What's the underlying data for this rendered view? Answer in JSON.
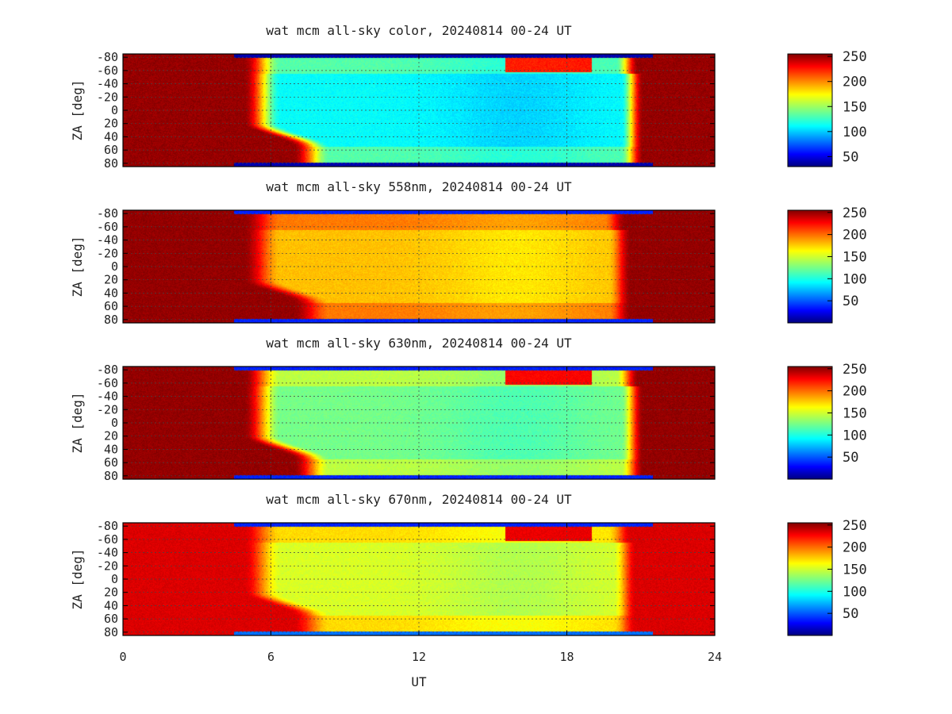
{
  "chart_data": [
    {
      "type": "heatmap",
      "title": "wat mcm all-sky color, 20240814 00-24 UT",
      "xlabel": "",
      "ylabel": "ZA [deg]",
      "xlim": [
        0,
        24
      ],
      "ylim": [
        -85,
        85
      ],
      "x_ticks": [
        0,
        6,
        12,
        18,
        24
      ],
      "y_ticks": [
        -80,
        -60,
        -40,
        -20,
        0,
        20,
        40,
        60,
        80
      ],
      "y_tick_labels": [
        "-80",
        "-60",
        "-40",
        "-20",
        "0",
        "20",
        "40",
        "60",
        "80"
      ],
      "grid": true,
      "colorbar": {
        "ticks": [
          50,
          100,
          150,
          200,
          250
        ],
        "range": [
          30,
          255
        ],
        "colormap": "jet"
      },
      "day_value": 250,
      "night_base": 115,
      "dusk_ut": 5.8,
      "dawn_ut": 20.8
    },
    {
      "type": "heatmap",
      "title": "wat mcm all-sky 558nm, 20240814 00-24 UT",
      "xlabel": "",
      "ylabel": "ZA [deg]",
      "xlim": [
        0,
        24
      ],
      "ylim": [
        -85,
        85
      ],
      "x_ticks": [
        0,
        6,
        12,
        18,
        24
      ],
      "y_ticks": [
        -80,
        -60,
        -40,
        -20,
        0,
        20,
        40,
        60,
        80
      ],
      "y_tick_labels": [
        "-80",
        "-60",
        "-40",
        "-20",
        "0",
        "20",
        "40",
        "60",
        "80"
      ],
      "grid": true,
      "colorbar": {
        "ticks": [
          50,
          100,
          150,
          200,
          250
        ],
        "range": [
          0,
          255
        ],
        "colormap": "jet"
      },
      "day_value": 250,
      "night_base": 175,
      "dusk_ut": 5.8,
      "dawn_ut": 20.3
    },
    {
      "type": "heatmap",
      "title": "wat mcm all-sky 630nm, 20240814 00-24 UT",
      "xlabel": "",
      "ylabel": "ZA [deg]",
      "xlim": [
        0,
        24
      ],
      "ylim": [
        -85,
        85
      ],
      "x_ticks": [
        0,
        6,
        12,
        18,
        24
      ],
      "y_ticks": [
        -80,
        -60,
        -40,
        -20,
        0,
        20,
        40,
        60,
        80
      ],
      "y_tick_labels": [
        "-80",
        "-60",
        "-40",
        "-20",
        "0",
        "20",
        "40",
        "60",
        "80"
      ],
      "grid": true,
      "colorbar": {
        "ticks": [
          50,
          100,
          150,
          200,
          250
        ],
        "range": [
          0,
          255
        ],
        "colormap": "jet"
      },
      "day_value": 250,
      "night_base": 125,
      "dusk_ut": 5.8,
      "dawn_ut": 20.8
    },
    {
      "type": "heatmap",
      "title": "wat mcm all-sky 670nm, 20240814 00-24 UT",
      "xlabel": "UT",
      "ylabel": "ZA [deg]",
      "xlim": [
        0,
        24
      ],
      "ylim": [
        -85,
        85
      ],
      "x_ticks": [
        0,
        6,
        12,
        18,
        24
      ],
      "y_ticks": [
        -80,
        -60,
        -40,
        -20,
        0,
        20,
        40,
        60,
        80
      ],
      "y_tick_labels": [
        "-80",
        "-60",
        "-40",
        "-20",
        "0",
        "20",
        "40",
        "60",
        "80"
      ],
      "grid": true,
      "colorbar": {
        "ticks": [
          50,
          100,
          150,
          200,
          250
        ],
        "range": [
          0,
          255
        ],
        "colormap": "jet"
      },
      "day_value": 232,
      "night_base": 150,
      "dusk_ut": 5.8,
      "dawn_ut": 20.5
    }
  ]
}
